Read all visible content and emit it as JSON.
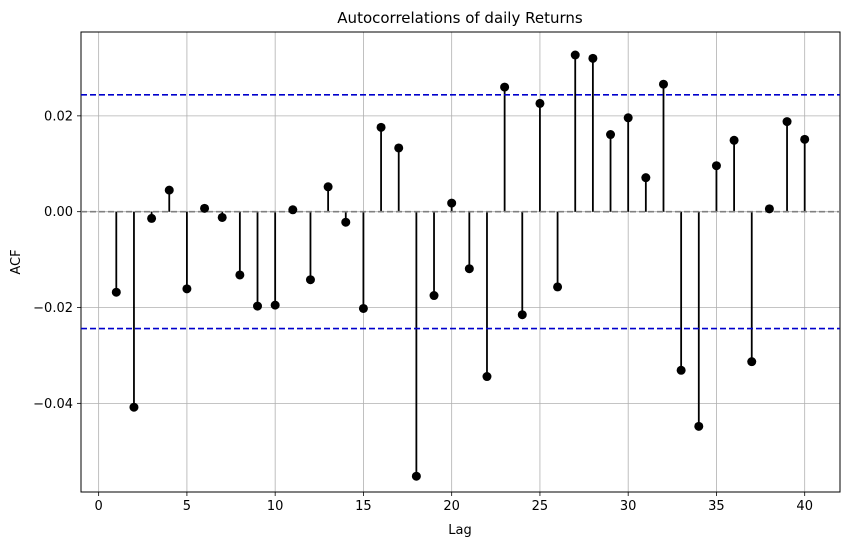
{
  "chart_data": {
    "type": "scatter",
    "subtype": "stem",
    "title": "Autocorrelations of daily Returns",
    "xlabel": "Lag",
    "ylabel": "ACF",
    "xlim": [
      -1,
      42
    ],
    "ylim": [
      -0.0585,
      0.0375
    ],
    "xticks": [
      0,
      5,
      10,
      15,
      20,
      25,
      30,
      35,
      40
    ],
    "xtick_labels": [
      "0",
      "5",
      "10",
      "15",
      "20",
      "25",
      "30",
      "35",
      "40"
    ],
    "yticks": [
      -0.04,
      -0.02,
      0.0,
      0.02
    ],
    "ytick_labels": [
      "−0.04",
      "−0.02",
      "0.00",
      "0.02"
    ],
    "grid": true,
    "confidence_band": 0.0244,
    "colors": {
      "stem": "#000000",
      "marker": "#000000",
      "confidence_line": "#0000cc",
      "zero_line": "#808080",
      "grid": "#b0b0b0"
    },
    "x": [
      1,
      2,
      3,
      4,
      5,
      6,
      7,
      8,
      9,
      10,
      11,
      12,
      13,
      14,
      15,
      16,
      17,
      18,
      19,
      20,
      21,
      22,
      23,
      24,
      25,
      26,
      27,
      28,
      29,
      30,
      31,
      32,
      33,
      34,
      35,
      36,
      37,
      38,
      39,
      40
    ],
    "values": [
      -0.0168,
      -0.0408,
      -0.0014,
      0.0045,
      -0.0161,
      0.0007,
      -0.0012,
      -0.0132,
      -0.0197,
      -0.0195,
      0.0004,
      -0.0142,
      0.0052,
      -0.0022,
      -0.0202,
      0.0176,
      0.0133,
      -0.0552,
      -0.0175,
      0.0018,
      -0.0119,
      -0.0344,
      0.026,
      -0.0215,
      0.0226,
      -0.0157,
      0.0327,
      0.032,
      0.0161,
      0.0196,
      0.0071,
      0.0266,
      -0.0331,
      -0.0448,
      0.0096,
      0.0149,
      -0.0313,
      0.0006,
      0.0188,
      0.0151
    ]
  }
}
